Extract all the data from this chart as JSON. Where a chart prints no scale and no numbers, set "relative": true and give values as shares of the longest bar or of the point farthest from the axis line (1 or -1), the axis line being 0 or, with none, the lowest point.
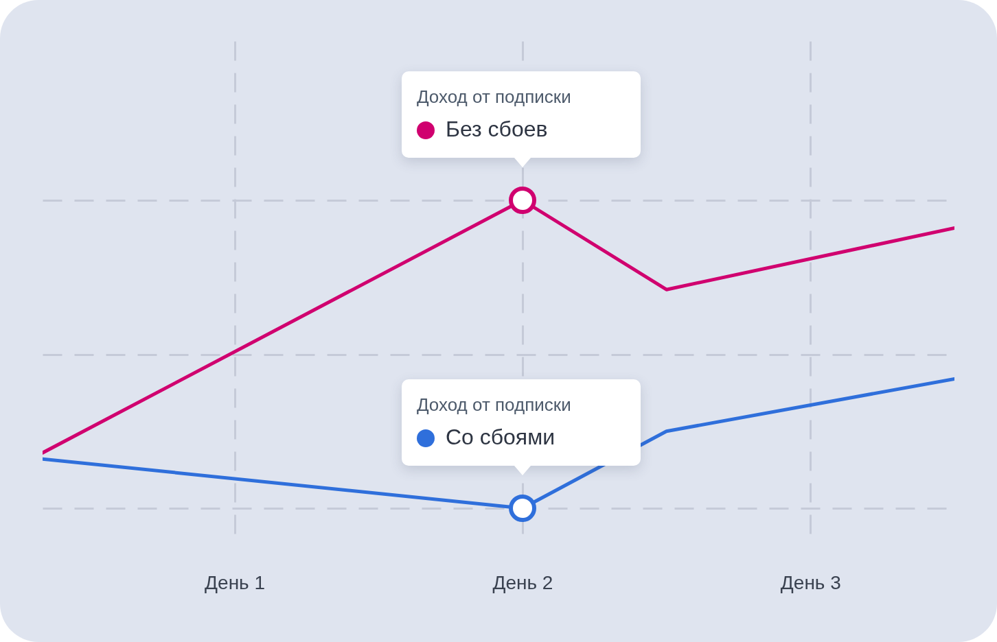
{
  "chart_data": {
    "type": "line",
    "relative": true,
    "grid": true,
    "line_style": "solid",
    "marker": "none",
    "categories": [
      null,
      null,
      null,
      null,
      "День 1",
      null,
      null,
      null,
      null,
      null,
      "День 2",
      null,
      null,
      null,
      null,
      null,
      "День 3",
      null,
      null,
      null
    ],
    "series": [
      {
        "name": "Без сбоев",
        "color": "#d0006f",
        "values": [
          0.18,
          null,
          null,
          null,
          null,
          null,
          null,
          null,
          null,
          null,
          1,
          null,
          null,
          0.71,
          null,
          null,
          null,
          null,
          null,
          0.91
        ]
      },
      {
        "name": "Со сбоями",
        "color": "#2f6fdb",
        "values": [
          0.16,
          null,
          null,
          null,
          null,
          null,
          null,
          null,
          null,
          null,
          0,
          null,
          null,
          0.25,
          null,
          null,
          null,
          null,
          null,
          0.42
        ]
      }
    ],
    "legend": "top",
    "annotations": [
      "Доход от подписки",
      "Доход от подписки"
    ]
  }
}
